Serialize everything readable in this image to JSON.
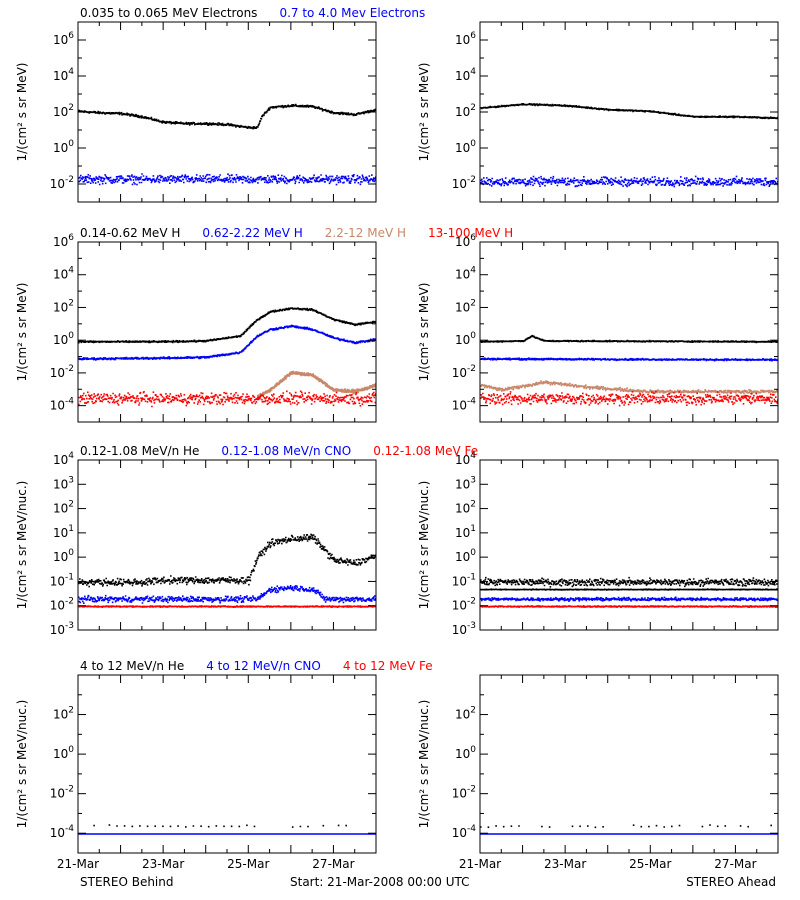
{
  "colors": {
    "black": "#000000",
    "blue": "#0000ff",
    "tan": "#c8876a",
    "red": "#ff0000",
    "axis": "#000000",
    "background": "#ffffff"
  },
  "footer": {
    "left": "STEREO Behind",
    "center": "Start: 21-Mar-2008 00:00 UTC",
    "right": "STEREO Ahead"
  },
  "chart_data": [
    {
      "id": "electrons",
      "type": "scatter",
      "row_legend": [
        {
          "text": "0.035 to 0.065 MeV Electrons",
          "color": "black"
        },
        {
          "text": "0.7 to 4.0 Mev Electrons",
          "color": "blue"
        }
      ],
      "ylabel": "1/(cm² s sr MeV)",
      "yscale": "log",
      "ylim_exp": [
        -3,
        7
      ],
      "tick_exps": [
        -2,
        0,
        2,
        4,
        6
      ],
      "x_days": [
        0,
        7
      ],
      "panels": [
        {
          "side": "STEREO Behind",
          "series": [
            {
              "color": "black",
              "points": [
                [
                  0,
                  120
                ],
                [
                  0.5,
                  100
                ],
                [
                  1,
                  90
                ],
                [
                  1.5,
                  60
                ],
                [
                  2,
                  30
                ],
                [
                  2.5,
                  25
                ],
                [
                  3,
                  25
                ],
                [
                  3.5,
                  22
                ],
                [
                  4,
                  15
                ],
                [
                  4.2,
                  15
                ],
                [
                  4.3,
                  60
                ],
                [
                  4.5,
                  200
                ],
                [
                  5,
                  250
                ],
                [
                  5.5,
                  220
                ],
                [
                  6,
                  100
                ],
                [
                  6.5,
                  80
                ],
                [
                  7,
                  150
                ]
              ],
              "noise_dex": 0.05
            },
            {
              "color": "blue",
              "points": [
                [
                  0,
                  0.02
                ],
                [
                  7,
                  0.02
                ]
              ],
              "noise_dex": 0.2
            }
          ]
        },
        {
          "side": "STEREO Ahead",
          "series": [
            {
              "color": "black",
              "points": [
                [
                  0,
                  180
                ],
                [
                  1,
                  300
                ],
                [
                  2,
                  250
                ],
                [
                  3,
                  150
                ],
                [
                  4,
                  120
                ],
                [
                  5,
                  60
                ],
                [
                  6,
                  60
                ],
                [
                  7,
                  50
                ]
              ],
              "noise_dex": 0.03
            },
            {
              "color": "blue",
              "points": [
                [
                  0,
                  0.015
                ],
                [
                  7,
                  0.015
                ]
              ],
              "noise_dex": 0.2
            }
          ]
        }
      ]
    },
    {
      "id": "protons",
      "type": "scatter",
      "row_legend": [
        {
          "text": "0.14-0.62 MeV H",
          "color": "black"
        },
        {
          "text": "0.62-2.22 MeV H",
          "color": "blue"
        },
        {
          "text": "2.2-12 MeV H",
          "color": "tan"
        },
        {
          "text": "13-100 MeV H",
          "color": "red"
        }
      ],
      "ylabel": "1/(cm² s sr MeV)",
      "yscale": "log",
      "ylim_exp": [
        -5,
        6
      ],
      "tick_exps": [
        -4,
        -2,
        0,
        2,
        4,
        6
      ],
      "x_days": [
        0,
        7
      ],
      "panels": [
        {
          "side": "STEREO Behind",
          "series": [
            {
              "color": "black",
              "points": [
                [
                  0,
                  0.9
                ],
                [
                  2,
                  0.9
                ],
                [
                  3,
                  1
                ],
                [
                  3.8,
                  2
                ],
                [
                  4.2,
                  20
                ],
                [
                  4.5,
                  60
                ],
                [
                  5,
                  100
                ],
                [
                  5.5,
                  80
                ],
                [
                  6,
                  20
                ],
                [
                  6.5,
                  10
                ],
                [
                  7,
                  15
                ]
              ],
              "noise_dex": 0.04
            },
            {
              "color": "blue",
              "points": [
                [
                  0,
                  0.08
                ],
                [
                  2,
                  0.09
                ],
                [
                  3,
                  0.1
                ],
                [
                  3.8,
                  0.2
                ],
                [
                  4.2,
                  2
                ],
                [
                  4.5,
                  5
                ],
                [
                  5,
                  8
                ],
                [
                  5.5,
                  5
                ],
                [
                  6,
                  1.5
                ],
                [
                  6.5,
                  0.8
                ],
                [
                  7,
                  1.2
                ]
              ],
              "noise_dex": 0.05
            },
            {
              "color": "tan",
              "points": [
                [
                  4.2,
                  0.0004
                ],
                [
                  4.5,
                  0.001
                ],
                [
                  5,
                  0.012
                ],
                [
                  5.5,
                  0.008
                ],
                [
                  6,
                  0.001
                ],
                [
                  6.5,
                  0.0008
                ],
                [
                  7,
                  0.002
                ]
              ],
              "noise_dex": 0.08
            },
            {
              "color": "red",
              "points": [
                [
                  0,
                  0.0003
                ],
                [
                  7,
                  0.0003
                ]
              ],
              "noise_dex": 0.3
            }
          ]
        },
        {
          "side": "STEREO Ahead",
          "series": [
            {
              "color": "black",
              "points": [
                [
                  0,
                  0.9
                ],
                [
                  1,
                  1
                ],
                [
                  1.2,
                  2
                ],
                [
                  1.5,
                  1
                ],
                [
                  7,
                  0.9
                ]
              ],
              "noise_dex": 0.03
            },
            {
              "color": "blue",
              "points": [
                [
                  0,
                  0.08
                ],
                [
                  7,
                  0.07
                ]
              ],
              "noise_dex": 0.04
            },
            {
              "color": "tan",
              "points": [
                [
                  0,
                  0.002
                ],
                [
                  0.5,
                  0.001
                ],
                [
                  1.5,
                  0.003
                ],
                [
                  2.5,
                  0.0015
                ],
                [
                  4,
                  0.0008
                ],
                [
                  7,
                  0.0008
                ]
              ],
              "noise_dex": 0.08
            },
            {
              "color": "red",
              "points": [
                [
                  0,
                  0.0003
                ],
                [
                  7,
                  0.0003
                ]
              ],
              "noise_dex": 0.3
            }
          ]
        }
      ]
    },
    {
      "id": "heavy-low",
      "type": "scatter",
      "row_legend": [
        {
          "text": "0.12-1.08 MeV/n He",
          "color": "black"
        },
        {
          "text": "0.12-1.08 MeV/n CNO",
          "color": "blue"
        },
        {
          "text": "0.12-1.08 MeV Fe",
          "color": "red"
        }
      ],
      "ylabel": "1/(cm² s sr MeV/nuc.)",
      "yscale": "log",
      "ylim_exp": [
        -3,
        4
      ],
      "tick_exps": [
        -3,
        -2,
        -1,
        0,
        1,
        2,
        3,
        4
      ],
      "x_days": [
        0,
        7
      ],
      "panels": [
        {
          "side": "STEREO Behind",
          "series": [
            {
              "color": "black",
              "points": [
                [
                  0,
                  0.1
                ],
                [
                  1.5,
                  0.1
                ],
                [
                  2,
                  0.12
                ],
                [
                  4,
                  0.12
                ],
                [
                  4.2,
                  1
                ],
                [
                  4.5,
                  4
                ],
                [
                  5,
                  6
                ],
                [
                  5.5,
                  7
                ],
                [
                  5.8,
                  2
                ],
                [
                  6,
                  0.8
                ],
                [
                  6.5,
                  0.6
                ],
                [
                  7,
                  1.2
                ]
              ],
              "noise_dex": 0.12
            },
            {
              "color": "blue",
              "points": [
                [
                  0,
                  0.02
                ],
                [
                  4.2,
                  0.02
                ],
                [
                  4.5,
                  0.05
                ],
                [
                  5,
                  0.06
                ],
                [
                  5.5,
                  0.05
                ],
                [
                  5.8,
                  0.02
                ],
                [
                  7,
                  0.02
                ]
              ],
              "noise_dex": 0.1
            },
            {
              "color": "red",
              "points": [
                [
                  0,
                  0.01
                ],
                [
                  7,
                  0.01
                ]
              ],
              "noise_dex": 0.02
            }
          ]
        },
        {
          "side": "STEREO Ahead",
          "series": [
            {
              "color": "black",
              "points": [
                [
                  0,
                  0.05
                ],
                [
                  7,
                  0.05
                ]
              ],
              "noise_dex": 0.01
            },
            {
              "color": "black",
              "points": [
                [
                  0,
                  0.1
                ],
                [
                  7,
                  0.1
                ]
              ],
              "noise_dex": 0.12
            },
            {
              "color": "blue",
              "points": [
                [
                  0,
                  0.02
                ],
                [
                  7,
                  0.02
                ]
              ],
              "noise_dex": 0.05
            },
            {
              "color": "red",
              "points": [
                [
                  0,
                  0.01
                ],
                [
                  7,
                  0.01
                ]
              ],
              "noise_dex": 0.02
            }
          ]
        }
      ]
    },
    {
      "id": "heavy-high",
      "type": "scatter",
      "row_legend": [
        {
          "text": "4 to 12 MeV/n He",
          "color": "black"
        },
        {
          "text": "4 to 12 MeV/n CNO",
          "color": "blue"
        },
        {
          "text": "4 to 12 MeV Fe",
          "color": "red"
        }
      ],
      "ylabel": "1/(cm² s sr MeV/nuc.)",
      "yscale": "log",
      "ylim_exp": [
        -5,
        4
      ],
      "tick_exps": [
        -4,
        -2,
        0,
        2
      ],
      "x_days": [
        0,
        7
      ],
      "xticks": [
        {
          "day": 0,
          "label": "21-Mar"
        },
        {
          "day": 2,
          "label": "23-Mar"
        },
        {
          "day": 4,
          "label": "25-Mar"
        },
        {
          "day": 6,
          "label": "27-Mar"
        }
      ],
      "panels": [
        {
          "side": "STEREO Behind",
          "series": [
            {
              "color": "blue",
              "points": [
                [
                  0,
                  0.0001
                ],
                [
                  7,
                  0.0001
                ]
              ],
              "noise_dex": 0.0
            },
            {
              "color": "black",
              "points": [
                [
                  0,
                  0.00025
                ],
                [
                  7,
                  0.00025
                ]
              ],
              "noise_dex": 0.05,
              "sparse": true
            }
          ]
        },
        {
          "side": "STEREO Ahead",
          "series": [
            {
              "color": "blue",
              "points": [
                [
                  0,
                  0.0001
                ],
                [
                  7,
                  0.0001
                ]
              ],
              "noise_dex": 0.0
            },
            {
              "color": "black",
              "points": [
                [
                  0,
                  0.00025
                ],
                [
                  7,
                  0.00025
                ]
              ],
              "noise_dex": 0.05,
              "sparse": true
            }
          ]
        }
      ]
    }
  ]
}
